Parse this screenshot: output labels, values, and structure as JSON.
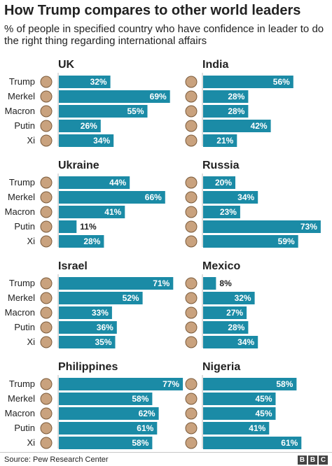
{
  "header": {
    "title": "How Trump compares to other world leaders",
    "subtitle": "% of people in specified country who have confidence in leader to do the right thing regarding international affairs"
  },
  "footer": {
    "source": "Source: Pew Research Center",
    "logo": [
      "B",
      "B",
      "C"
    ]
  },
  "colors": {
    "bar": "#1b8ba6",
    "label_inside": "#ffffff",
    "label_outside": "#222222"
  },
  "chart_data": [
    {
      "type": "bar",
      "title": "UK",
      "categories": [
        "Trump",
        "Merkel",
        "Macron",
        "Putin",
        "Xi"
      ],
      "values": [
        32,
        69,
        55,
        26,
        34
      ],
      "value_labels": [
        "32%",
        "69%",
        "55%",
        "26%",
        "34%"
      ]
    },
    {
      "type": "bar",
      "title": "India",
      "categories": [
        "Trump",
        "Merkel",
        "Macron",
        "Putin",
        "Xi"
      ],
      "values": [
        56,
        28,
        28,
        42,
        21
      ],
      "value_labels": [
        "56%",
        "28%",
        "28%",
        "42%",
        "21%"
      ]
    },
    {
      "type": "bar",
      "title": "Ukraine",
      "categories": [
        "Trump",
        "Merkel",
        "Macron",
        "Putin",
        "Xi"
      ],
      "values": [
        44,
        66,
        41,
        11,
        28
      ],
      "value_labels": [
        "44%",
        "66%",
        "41%",
        "11%",
        "28%"
      ]
    },
    {
      "type": "bar",
      "title": "Russia",
      "categories": [
        "Trump",
        "Merkel",
        "Macron",
        "Putin",
        "Xi"
      ],
      "values": [
        20,
        34,
        23,
        73,
        59
      ],
      "value_labels": [
        "20%",
        "34%",
        "23%",
        "73%",
        "59%"
      ]
    },
    {
      "type": "bar",
      "title": "Israel",
      "categories": [
        "Trump",
        "Merkel",
        "Macron",
        "Putin",
        "Xi"
      ],
      "values": [
        71,
        52,
        33,
        36,
        35
      ],
      "value_labels": [
        "71%",
        "52%",
        "33%",
        "36%",
        "35%"
      ]
    },
    {
      "type": "bar",
      "title": "Mexico",
      "categories": [
        "Trump",
        "Merkel",
        "Macron",
        "Putin",
        "Xi"
      ],
      "values": [
        8,
        32,
        27,
        28,
        34
      ],
      "value_labels": [
        "8%",
        "32%",
        "27%",
        "28%",
        "34%"
      ]
    },
    {
      "type": "bar",
      "title": "Philippines",
      "categories": [
        "Trump",
        "Merkel",
        "Macron",
        "Putin",
        "Xi"
      ],
      "values": [
        77,
        58,
        62,
        61,
        58
      ],
      "value_labels": [
        "77%",
        "58%",
        "62%",
        "61%",
        "58%"
      ]
    },
    {
      "type": "bar",
      "title": "Nigeria",
      "categories": [
        "Trump",
        "Merkel",
        "Macron",
        "Putin",
        "Xi"
      ],
      "values": [
        58,
        45,
        45,
        41,
        61
      ],
      "value_labels": [
        "58%",
        "45%",
        "45%",
        "41%",
        "61%"
      ]
    }
  ]
}
